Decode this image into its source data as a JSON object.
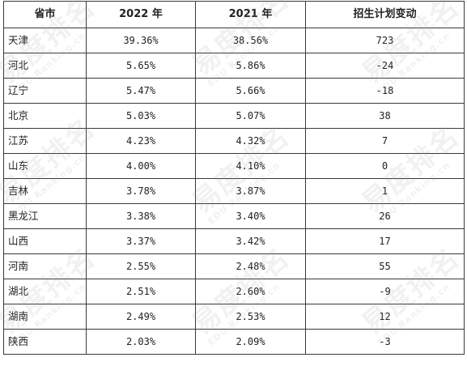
{
  "table": {
    "headers": {
      "province": "省市",
      "y2022": "2022 年",
      "y2021": "2021 年",
      "change": "招生计划变动"
    },
    "rows": [
      {
        "province": "天津",
        "y2022": "39.36%",
        "y2021": "38.56%",
        "change": "723"
      },
      {
        "province": "河北",
        "y2022": "5.65%",
        "y2021": "5.86%",
        "change": "-24"
      },
      {
        "province": "辽宁",
        "y2022": "5.47%",
        "y2021": "5.66%",
        "change": "-18"
      },
      {
        "province": "北京",
        "y2022": "5.03%",
        "y2021": "5.07%",
        "change": "38"
      },
      {
        "province": "江苏",
        "y2022": "4.23%",
        "y2021": "4.32%",
        "change": "7"
      },
      {
        "province": "山东",
        "y2022": "4.00%",
        "y2021": "4.10%",
        "change": "0"
      },
      {
        "province": "吉林",
        "y2022": "3.78%",
        "y2021": "3.87%",
        "change": "1"
      },
      {
        "province": "黑龙江",
        "y2022": "3.38%",
        "y2021": "3.40%",
        "change": "26"
      },
      {
        "province": "山西",
        "y2022": "3.37%",
        "y2021": "3.42%",
        "change": "17"
      },
      {
        "province": "河南",
        "y2022": "2.55%",
        "y2021": "2.48%",
        "change": "55"
      },
      {
        "province": "湖北",
        "y2022": "2.51%",
        "y2021": "2.60%",
        "change": "-9"
      },
      {
        "province": "湖南",
        "y2022": "2.49%",
        "y2021": "2.53%",
        "change": "12"
      },
      {
        "province": "陕西",
        "y2022": "2.03%",
        "y2021": "2.09%",
        "change": "-3"
      }
    ]
  },
  "watermark": {
    "brand": "易度排名",
    "url": "EDU Ranking.cn"
  },
  "colors": {
    "border": "#3a3a3a",
    "text": "#222222",
    "watermark": "#969696"
  }
}
